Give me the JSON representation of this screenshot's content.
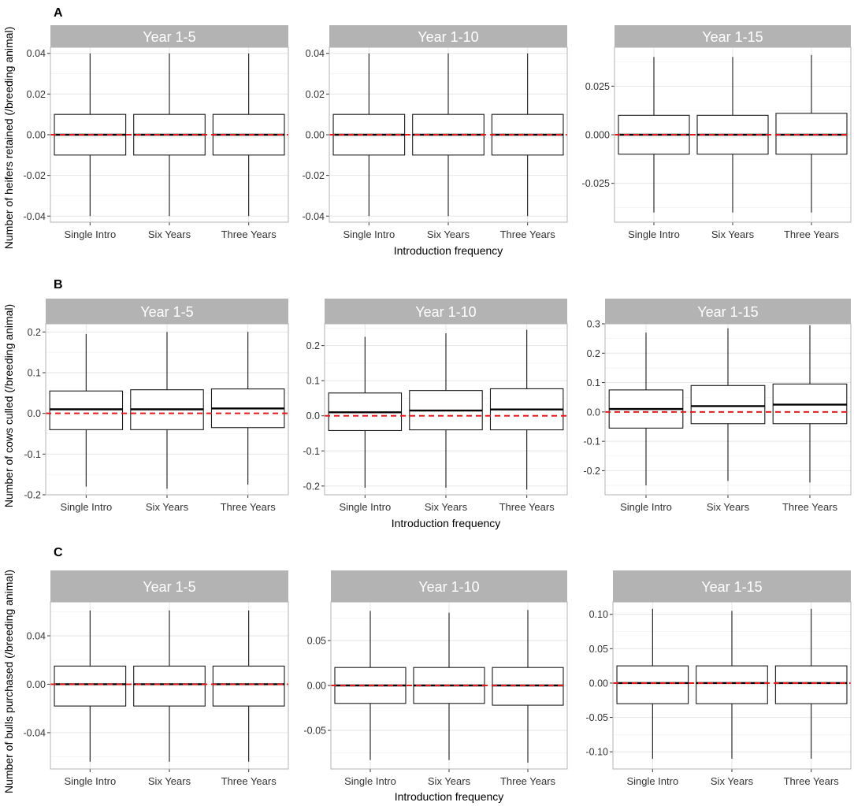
{
  "figure": {
    "x_title": "Introduction frequency",
    "colors": {
      "strip": "#b3b3b3",
      "panel_border": "#b3b3b3",
      "grid_major": "#e6e6e6",
      "grid_minor": "#f3f3f3",
      "reference_line": "#e41a1c",
      "box": "#1a1a1a"
    }
  },
  "chart_data": [
    {
      "letter": "A",
      "ylabel": "Number of heifers retained (/breeding animal)",
      "facets": [
        {
          "title": "Year 1-5",
          "type": "boxplot",
          "categories": [
            "Single Intro",
            "Six Years",
            "Three Years"
          ],
          "ylim": [
            -0.043,
            0.043
          ],
          "yticks": [
            -0.04,
            -0.02,
            0.0,
            0.02,
            0.04
          ],
          "ytick_labels": [
            "-0.04",
            "-0.02",
            "0.00",
            "0.02",
            "0.04"
          ],
          "boxes": [
            {
              "min": -0.04,
              "q1": -0.01,
              "median": 0.0,
              "q3": 0.01,
              "max": 0.04
            },
            {
              "min": -0.04,
              "q1": -0.01,
              "median": 0.0,
              "q3": 0.01,
              "max": 0.04
            },
            {
              "min": -0.04,
              "q1": -0.01,
              "median": 0.0,
              "q3": 0.01,
              "max": 0.04
            }
          ],
          "reference_y": 0
        },
        {
          "title": "Year 1-10",
          "type": "boxplot",
          "categories": [
            "Single Intro",
            "Six Years",
            "Three Years"
          ],
          "ylim": [
            -0.043,
            0.043
          ],
          "yticks": [
            -0.04,
            -0.02,
            0.0,
            0.02,
            0.04
          ],
          "ytick_labels": [
            "-0.04",
            "-0.02",
            "0.00",
            "0.02",
            "0.04"
          ],
          "boxes": [
            {
              "min": -0.04,
              "q1": -0.01,
              "median": 0.0,
              "q3": 0.01,
              "max": 0.04
            },
            {
              "min": -0.04,
              "q1": -0.01,
              "median": 0.0,
              "q3": 0.01,
              "max": 0.04
            },
            {
              "min": -0.04,
              "q1": -0.01,
              "median": 0.0,
              "q3": 0.01,
              "max": 0.04
            }
          ],
          "reference_y": 0
        },
        {
          "title": "Year 1-15",
          "type": "boxplot",
          "categories": [
            "Single Intro",
            "Six Years",
            "Three Years"
          ],
          "ylim": [
            -0.045,
            0.045
          ],
          "yticks": [
            -0.025,
            0.0,
            0.025
          ],
          "ytick_labels": [
            "-0.025",
            "0.000",
            "0.025"
          ],
          "boxes": [
            {
              "min": -0.04,
              "q1": -0.01,
              "median": 0.0,
              "q3": 0.01,
              "max": 0.04
            },
            {
              "min": -0.04,
              "q1": -0.01,
              "median": 0.0,
              "q3": 0.01,
              "max": 0.04
            },
            {
              "min": -0.04,
              "q1": -0.01,
              "median": 0.0,
              "q3": 0.011,
              "max": 0.041
            }
          ],
          "reference_y": 0
        }
      ]
    },
    {
      "letter": "B",
      "ylabel": "Number of cows culled (/breeding animal)",
      "facets": [
        {
          "title": "Year 1-5",
          "type": "boxplot",
          "categories": [
            "Single Intro",
            "Six Years",
            "Three Years"
          ],
          "ylim": [
            -0.2,
            0.22
          ],
          "yticks": [
            -0.2,
            -0.1,
            0.0,
            0.1,
            0.2
          ],
          "ytick_labels": [
            "-0.2",
            "-0.1",
            "0.0",
            "0.1",
            "0.2"
          ],
          "boxes": [
            {
              "min": -0.18,
              "q1": -0.04,
              "median": 0.01,
              "q3": 0.055,
              "max": 0.195
            },
            {
              "min": -0.185,
              "q1": -0.04,
              "median": 0.01,
              "q3": 0.058,
              "max": 0.2
            },
            {
              "min": -0.175,
              "q1": -0.035,
              "median": 0.012,
              "q3": 0.06,
              "max": 0.2
            }
          ],
          "reference_y": 0
        },
        {
          "title": "Year 1-10",
          "type": "boxplot",
          "categories": [
            "Single Intro",
            "Six Years",
            "Three Years"
          ],
          "ylim": [
            -0.225,
            0.262
          ],
          "yticks": [
            -0.2,
            -0.1,
            0.0,
            0.1,
            0.2
          ],
          "ytick_labels": [
            "-0.2",
            "-0.1",
            "0.0",
            "0.1",
            "0.2"
          ],
          "boxes": [
            {
              "min": -0.205,
              "q1": -0.042,
              "median": 0.01,
              "q3": 0.065,
              "max": 0.225
            },
            {
              "min": -0.205,
              "q1": -0.04,
              "median": 0.015,
              "q3": 0.072,
              "max": 0.235
            },
            {
              "min": -0.21,
              "q1": -0.04,
              "median": 0.018,
              "q3": 0.077,
              "max": 0.245
            }
          ],
          "reference_y": 0
        },
        {
          "title": "Year 1-15",
          "type": "boxplot",
          "categories": [
            "Single Intro",
            "Six Years",
            "Three Years"
          ],
          "ylim": [
            -0.282,
            0.3
          ],
          "yticks": [
            -0.2,
            -0.1,
            0.0,
            0.1,
            0.2,
            0.3
          ],
          "ytick_labels": [
            "-0.2",
            "-0.1",
            "0.0",
            "0.1",
            "0.2",
            "0.3"
          ],
          "boxes": [
            {
              "min": -0.25,
              "q1": -0.055,
              "median": 0.01,
              "q3": 0.075,
              "max": 0.27
            },
            {
              "min": -0.235,
              "q1": -0.04,
              "median": 0.02,
              "q3": 0.09,
              "max": 0.285
            },
            {
              "min": -0.24,
              "q1": -0.04,
              "median": 0.025,
              "q3": 0.095,
              "max": 0.295
            }
          ],
          "reference_y": 0
        }
      ]
    },
    {
      "letter": "C",
      "ylabel": "Number of bulls purchased (/breeding animal)",
      "facets": [
        {
          "title": "Year 1-5",
          "type": "boxplot",
          "categories": [
            "Single Intro",
            "Six Years",
            "Three Years"
          ],
          "ylim": [
            -0.07,
            0.068
          ],
          "yticks": [
            -0.04,
            0.0,
            0.04
          ],
          "ytick_labels": [
            "-0.04",
            "0.00",
            "0.04"
          ],
          "boxes": [
            {
              "min": -0.064,
              "q1": -0.018,
              "median": 0.0,
              "q3": 0.015,
              "max": 0.061
            },
            {
              "min": -0.064,
              "q1": -0.018,
              "median": 0.0,
              "q3": 0.015,
              "max": 0.061
            },
            {
              "min": -0.064,
              "q1": -0.018,
              "median": 0.0,
              "q3": 0.015,
              "max": 0.061
            }
          ],
          "reference_y": 0
        },
        {
          "title": "Year 1-10",
          "type": "boxplot",
          "categories": [
            "Single Intro",
            "Six Years",
            "Three Years"
          ],
          "ylim": [
            -0.093,
            0.093
          ],
          "yticks": [
            -0.05,
            0.0,
            0.05
          ],
          "ytick_labels": [
            "-0.05",
            "0.00",
            "0.05"
          ],
          "boxes": [
            {
              "min": -0.083,
              "q1": -0.02,
              "median": 0.0,
              "q3": 0.02,
              "max": 0.083
            },
            {
              "min": -0.083,
              "q1": -0.02,
              "median": 0.0,
              "q3": 0.02,
              "max": 0.081
            },
            {
              "min": -0.086,
              "q1": -0.022,
              "median": 0.0,
              "q3": 0.02,
              "max": 0.084
            }
          ],
          "reference_y": 0
        },
        {
          "title": "Year 1-15",
          "type": "boxplot",
          "categories": [
            "Single Intro",
            "Six Years",
            "Three Years"
          ],
          "ylim": [
            -0.125,
            0.118
          ],
          "yticks": [
            -0.1,
            -0.05,
            0.0,
            0.05,
            0.1
          ],
          "ytick_labels": [
            "-0.10",
            "-0.05",
            "0.00",
            "0.05",
            "0.10"
          ],
          "boxes": [
            {
              "min": -0.11,
              "q1": -0.03,
              "median": 0.0,
              "q3": 0.025,
              "max": 0.108
            },
            {
              "min": -0.11,
              "q1": -0.03,
              "median": 0.0,
              "q3": 0.025,
              "max": 0.105
            },
            {
              "min": -0.11,
              "q1": -0.03,
              "median": 0.0,
              "q3": 0.025,
              "max": 0.108
            }
          ],
          "reference_y": 0
        }
      ]
    }
  ]
}
